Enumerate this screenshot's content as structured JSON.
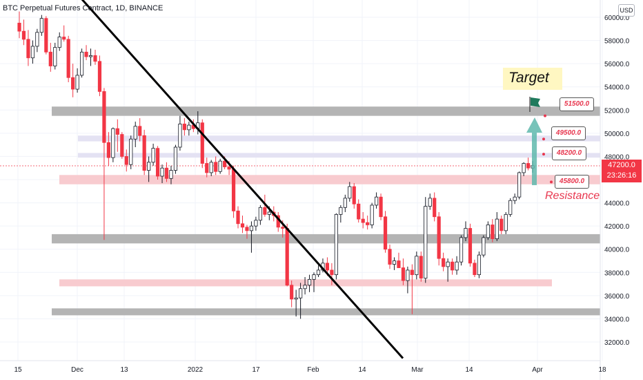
{
  "header": {
    "title": "BTC Perpetual Futures Contract, 1D, BINANCE",
    "currency": "USD"
  },
  "colors": {
    "up": "#ffffff",
    "down": "#f23645",
    "wick": "#131722",
    "grayZone": "#b0b0b0",
    "pinkZone": "#f8c8cc",
    "lavenderZone": "#e3e0f2",
    "arrow": "#5fb9ad",
    "trendline": "#000000",
    "annotation": "#e8374f",
    "targetBg": "#fff7c2"
  },
  "annotations": {
    "target": "Target",
    "resistance": "Resistance",
    "levels": [
      "51500.0",
      "49500.0",
      "48200.0",
      "45800.0"
    ],
    "flag_icon": "flag-icon"
  },
  "price_tag": {
    "price": "47200.0",
    "countdown": "23:26:16"
  },
  "chart_data": {
    "type": "candlestick",
    "title": "BTC Perpetual Futures Contract, 1D, BINANCE",
    "ylim": [
      30500,
      61000
    ],
    "y_ticks": [
      "32000.0",
      "34000.0",
      "36000.0",
      "38000.0",
      "40000.0",
      "42000.0",
      "44000.0",
      "46000.0",
      "48000.0",
      "50000.0",
      "52000.0",
      "54000.0",
      "56000.0",
      "58000.0",
      "60000.0"
    ],
    "x_ticks": [
      "15",
      "Dec",
      "13",
      "2022",
      "17",
      "Feb",
      "14",
      "Mar",
      "14",
      "Apr",
      "18"
    ],
    "zones": [
      {
        "kind": "gray",
        "from": 51500,
        "to": 52300,
        "start_label": "Dec"
      },
      {
        "kind": "lavender",
        "from": 49300,
        "to": 49800,
        "start_label": "Dec"
      },
      {
        "kind": "lavender",
        "from": 47900,
        "to": 48300,
        "start_label": "Dec"
      },
      {
        "kind": "pink",
        "from": 45600,
        "to": 46400,
        "start_label": "Dec"
      },
      {
        "kind": "gray",
        "from": 40500,
        "to": 41300,
        "start_label": "Dec"
      },
      {
        "kind": "pink",
        "from": 36800,
        "to": 37400,
        "start_label": "Dec"
      },
      {
        "kind": "gray",
        "from": 34300,
        "to": 34900,
        "start_label": "Dec"
      }
    ],
    "trendline": [
      {
        "date": "Dec 1",
        "price": 62000
      },
      {
        "date": "Feb 28",
        "price": 30600
      }
    ],
    "levels": [
      51500,
      49500,
      48200,
      45800
    ],
    "candles": [
      [
        59500,
        60500,
        58200,
        58800
      ],
      [
        58800,
        59800,
        57600,
        58100
      ],
      [
        58100,
        58900,
        55800,
        56500
      ],
      [
        56500,
        58000,
        56000,
        57500
      ],
      [
        57500,
        59000,
        57000,
        58700
      ],
      [
        58700,
        60200,
        58400,
        59900
      ],
      [
        59900,
        60100,
        56800,
        57000
      ],
      [
        57000,
        57800,
        55300,
        55800
      ],
      [
        55800,
        57800,
        55500,
        57400
      ],
      [
        57400,
        58700,
        57100,
        58300
      ],
      [
        58300,
        59300,
        57900,
        58100
      ],
      [
        58100,
        58400,
        54400,
        54800
      ],
      [
        54800,
        56000,
        53100,
        53800
      ],
      [
        53800,
        55600,
        53500,
        55000
      ],
      [
        55000,
        57300,
        54800,
        57000
      ],
      [
        57000,
        57600,
        56300,
        56600
      ],
      [
        56600,
        57300,
        55800,
        56700
      ],
      [
        56700,
        57200,
        55900,
        56200
      ],
      [
        56200,
        56700,
        53200,
        53600
      ],
      [
        53600,
        53900,
        40800,
        49200
      ],
      [
        49200,
        50100,
        47200,
        47900
      ],
      [
        47900,
        50500,
        47500,
        50400
      ],
      [
        50400,
        51200,
        48400,
        49900
      ],
      [
        49900,
        50100,
        47800,
        48000
      ],
      [
        48000,
        48600,
        46700,
        47300
      ],
      [
        47300,
        49800,
        46900,
        49500
      ],
      [
        49500,
        51000,
        48800,
        50600
      ],
      [
        50600,
        51300,
        49300,
        49800
      ],
      [
        49800,
        50300,
        46400,
        46800
      ],
      [
        46800,
        48000,
        45800,
        47500
      ],
      [
        47500,
        49100,
        47200,
        48700
      ],
      [
        48700,
        48900,
        46000,
        46300
      ],
      [
        46300,
        47300,
        45700,
        47000
      ],
      [
        47000,
        47500,
        45800,
        46100
      ],
      [
        46100,
        47200,
        45600,
        46800
      ],
      [
        46800,
        49000,
        46500,
        48800
      ],
      [
        48800,
        51500,
        48500,
        50800
      ],
      [
        50800,
        51300,
        49800,
        50300
      ],
      [
        50300,
        51000,
        49800,
        50700
      ],
      [
        50700,
        51200,
        50100,
        50400
      ],
      [
        50400,
        51900,
        49900,
        50900
      ],
      [
        50900,
        51200,
        47000,
        47400
      ],
      [
        47400,
        47900,
        46200,
        46600
      ],
      [
        46600,
        47700,
        46300,
        47500
      ],
      [
        47500,
        48000,
        46400,
        46700
      ],
      [
        46700,
        47800,
        46500,
        47600
      ],
      [
        47600,
        48000,
        46900,
        47100
      ],
      [
        47100,
        47600,
        46400,
        46900
      ],
      [
        46900,
        47200,
        42700,
        43300
      ],
      [
        43300,
        43700,
        41800,
        42200
      ],
      [
        42200,
        42900,
        41400,
        41900
      ],
      [
        41900,
        42100,
        40900,
        41600
      ],
      [
        41600,
        42400,
        39700,
        42000
      ],
      [
        42000,
        42800,
        41600,
        42500
      ],
      [
        42500,
        43800,
        42100,
        43600
      ],
      [
        43600,
        44700,
        42800,
        43000
      ],
      [
        43000,
        43700,
        42500,
        43200
      ],
      [
        43200,
        43700,
        42400,
        42900
      ],
      [
        42900,
        43200,
        41500,
        41900
      ],
      [
        41900,
        42500,
        41000,
        41800
      ],
      [
        41800,
        42200,
        36800,
        36900
      ],
      [
        36900,
        37300,
        35000,
        35700
      ],
      [
        35700,
        36500,
        34200,
        35800
      ],
      [
        35800,
        37100,
        34000,
        36600
      ],
      [
        36600,
        37600,
        36100,
        36900
      ],
      [
        36900,
        37800,
        36300,
        37400
      ],
      [
        37400,
        38000,
        36300,
        37800
      ],
      [
        37800,
        38600,
        37600,
        38200
      ],
      [
        38200,
        39200,
        38000,
        38800
      ],
      [
        38800,
        39300,
        37700,
        38200
      ],
      [
        38200,
        38800,
        36900,
        37800
      ],
      [
        37800,
        43100,
        37400,
        43000
      ],
      [
        43000,
        43800,
        42300,
        43600
      ],
      [
        43600,
        44700,
        43200,
        44400
      ],
      [
        44400,
        45800,
        44100,
        45400
      ],
      [
        45400,
        45700,
        43500,
        43900
      ],
      [
        43900,
        44300,
        42300,
        42600
      ],
      [
        42600,
        43200,
        41800,
        42300
      ],
      [
        42300,
        42900,
        41700,
        42100
      ],
      [
        42100,
        44000,
        41800,
        43800
      ],
      [
        43800,
        44900,
        43500,
        44500
      ],
      [
        44500,
        44800,
        42500,
        42800
      ],
      [
        42800,
        43300,
        39700,
        40000
      ],
      [
        40000,
        40400,
        38300,
        38700
      ],
      [
        38700,
        39300,
        38200,
        39000
      ],
      [
        39000,
        39700,
        38600,
        38400
      ],
      [
        38400,
        39200,
        36900,
        37300
      ],
      [
        37300,
        38500,
        36200,
        38200
      ],
      [
        38200,
        38700,
        34400,
        37800
      ],
      [
        37800,
        39800,
        37400,
        39400
      ],
      [
        39400,
        39800,
        37200,
        37500
      ],
      [
        37500,
        44500,
        37100,
        43700
      ],
      [
        43700,
        44800,
        43400,
        44400
      ],
      [
        44400,
        44900,
        42400,
        42800
      ],
      [
        42800,
        43200,
        38600,
        39200
      ],
      [
        39200,
        39700,
        38100,
        38500
      ],
      [
        38500,
        39200,
        37200,
        38900
      ],
      [
        38900,
        39200,
        37800,
        38200
      ],
      [
        38200,
        39400,
        37800,
        38900
      ],
      [
        38900,
        41200,
        38600,
        41000
      ],
      [
        41000,
        42400,
        40700,
        41800
      ],
      [
        41800,
        42200,
        38500,
        38800
      ],
      [
        38800,
        39100,
        37600,
        37800
      ],
      [
        37800,
        39800,
        37500,
        39500
      ],
      [
        39500,
        41200,
        39300,
        41000
      ],
      [
        41000,
        42400,
        40800,
        42100
      ],
      [
        42100,
        42600,
        40600,
        40900
      ],
      [
        40900,
        43200,
        40700,
        42600
      ],
      [
        42600,
        42900,
        41300,
        41600
      ],
      [
        41600,
        43200,
        41300,
        43000
      ],
      [
        43000,
        44400,
        42800,
        44200
      ],
      [
        44200,
        44800,
        43900,
        44500
      ],
      [
        44500,
        46700,
        44300,
        46600
      ],
      [
        46600,
        47500,
        46300,
        47400
      ],
      [
        47400,
        47900,
        46800,
        47000
      ],
      [
        47000,
        47600,
        46600,
        47200
      ]
    ]
  }
}
